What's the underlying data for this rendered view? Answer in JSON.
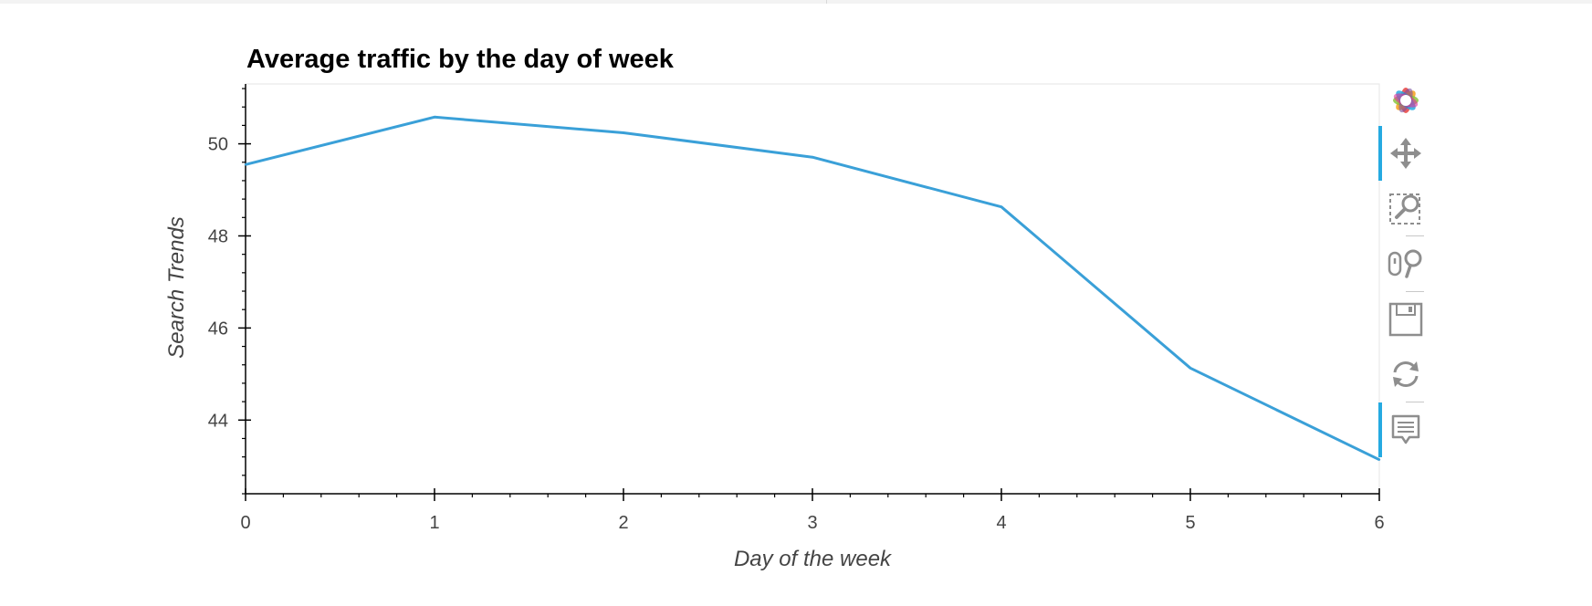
{
  "chart_data": {
    "type": "line",
    "title": "Average traffic by the day of week",
    "xlabel": "Day of the week",
    "ylabel": "Search Trends",
    "x": [
      0,
      1,
      2,
      3,
      4,
      5,
      6
    ],
    "series": [
      {
        "values": [
          49.55,
          50.58,
          50.24,
          49.71,
          48.63,
          45.13,
          43.14
        ],
        "color": "#3aa0d8"
      }
    ],
    "xlim": [
      0,
      6
    ],
    "ylim": [
      42.4,
      51.3
    ],
    "x_ticks": [
      0,
      1,
      2,
      3,
      4,
      5,
      6
    ],
    "y_ticks": [
      44,
      46,
      48,
      50
    ],
    "grid": false,
    "legend": "none"
  },
  "toolbar": {
    "logo": "bokeh-logo-icon",
    "tools": [
      {
        "name": "pan-icon",
        "active": true
      },
      {
        "name": "box-zoom-icon",
        "active": false
      },
      {
        "name": "wheel-zoom-icon",
        "active": false
      },
      {
        "name": "save-icon",
        "active": false
      },
      {
        "name": "reset-icon",
        "active": false
      },
      {
        "name": "hover-icon",
        "active": true
      }
    ],
    "accent_color": "#26aae1"
  }
}
